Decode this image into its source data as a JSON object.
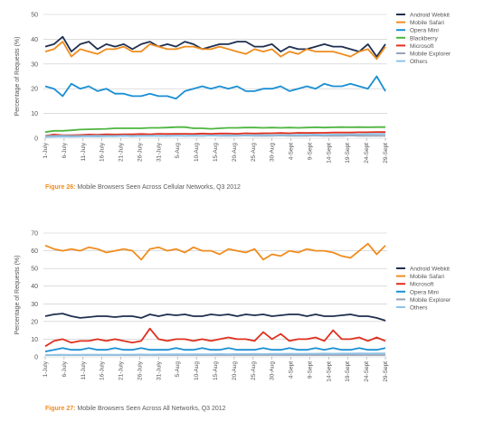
{
  "chart_data": [
    {
      "type": "line",
      "caption_label": "Figure 26:",
      "caption_text": " Mobile Browsers Seen Across Cellular Networks, Q3 2012",
      "ylabel": "Percentage of Requests (%)",
      "ylim": [
        0,
        50
      ],
      "yticks": [
        0,
        10,
        20,
        30,
        40,
        50
      ],
      "grid": true,
      "legend_position": "right",
      "x_tick_labels": [
        "1-July",
        "6-July",
        "11-July",
        "16-July",
        "21-July",
        "26-July",
        "31-July",
        "5-Aug",
        "10-Aug",
        "15-Aug",
        "20-Aug",
        "25-Aug",
        "30-Aug",
        "4-Sept",
        "9-Sept",
        "14-Sept",
        "19-Sept",
        "24-Sept",
        "29-Sept"
      ],
      "series": [
        {
          "name": "Android Webkit",
          "color": "#1f2f4f",
          "values": [
            37,
            38,
            41,
            35,
            38,
            39,
            36,
            38,
            37,
            38,
            36,
            38,
            39,
            37,
            38,
            37,
            39,
            38,
            36,
            37,
            38,
            38,
            39,
            39,
            37,
            37,
            38,
            35,
            37,
            36,
            36,
            37,
            38,
            37,
            37,
            36,
            35,
            38,
            33,
            38
          ]
        },
        {
          "name": "Mobile Safari",
          "color": "#f08c1e",
          "values": [
            35,
            36,
            39,
            33,
            36,
            35,
            34,
            36,
            36,
            37,
            35,
            35,
            38,
            37,
            36,
            36,
            37,
            37,
            36,
            36,
            37,
            36,
            35,
            34,
            36,
            35,
            36,
            33,
            35,
            34,
            36,
            35,
            35,
            35,
            34,
            33,
            35,
            36,
            32,
            37
          ]
        },
        {
          "name": "Opera Mini",
          "color": "#1a8fd4",
          "values": [
            21,
            20,
            17,
            22,
            20,
            21,
            19,
            20,
            18,
            18,
            17,
            17,
            18,
            17,
            17,
            16,
            19,
            20,
            21,
            20,
            21,
            20,
            21,
            19,
            19,
            20,
            20,
            21,
            19,
            20,
            21,
            20,
            22,
            21,
            21,
            22,
            21,
            20,
            25,
            19
          ]
        },
        {
          "name": "Blackberry",
          "color": "#4db53f",
          "values": [
            2.5,
            3,
            3,
            3.2,
            3.5,
            3.6,
            3.7,
            3.8,
            4,
            4,
            4,
            4,
            4.2,
            4.2,
            4.3,
            4.5,
            4.5,
            4,
            4,
            3.8,
            4,
            4.2,
            4.2,
            4.3,
            4.3,
            4.2,
            4.3,
            4.2,
            4.3,
            4.2,
            4.3,
            4.4,
            4.3,
            4.4,
            4.5,
            4.4,
            4.5,
            4.4,
            4.5,
            4.5
          ]
        },
        {
          "name": "Microsoft",
          "color": "#e0301e",
          "values": [
            1,
            1.5,
            1.2,
            1.2,
            1.3,
            1.5,
            1.4,
            1.6,
            1.5,
            1.6,
            1.6,
            1.7,
            1.6,
            1.8,
            1.7,
            1.8,
            1.8,
            1.7,
            1.9,
            1.8,
            1.9,
            1.9,
            1.8,
            2,
            1.9,
            2,
            2,
            2.1,
            2,
            2.2,
            2.1,
            2.2,
            2.2,
            2.3,
            2.3,
            2.3,
            2.4,
            2.4,
            2.5,
            2.5
          ]
        },
        {
          "name": "Mobile Explorer",
          "color": "#9aa3b5",
          "values": [
            1,
            1,
            1.1,
            1,
            1,
            1,
            1.1,
            1,
            1,
            1.1,
            1,
            1,
            1.1,
            1,
            1,
            1.1,
            1,
            1,
            1,
            1.1,
            1,
            1,
            1,
            1.1,
            1,
            1,
            1,
            1.1,
            1,
            1,
            1,
            1.1,
            1,
            1,
            1,
            1.1,
            1,
            1,
            1,
            1
          ]
        },
        {
          "name": "Others",
          "color": "#8fc3e8",
          "values": [
            0.5,
            0.6,
            0.7,
            0.6,
            0.7,
            0.8,
            0.7,
            0.8,
            0.8,
            0.9,
            0.8,
            0.9,
            0.9,
            1,
            0.9,
            1,
            1,
            1.1,
            1,
            1.1,
            1.1,
            1.2,
            1.1,
            1.2,
            1.2,
            1.3,
            1.2,
            1.3,
            1.3,
            1.4,
            1.4,
            1.5,
            1.4,
            1.5,
            1.5,
            1.6,
            1.6,
            1.7,
            1.7,
            1.8
          ]
        }
      ]
    },
    {
      "type": "line",
      "caption_label": "Figure 27:",
      "caption_text": " Mobile Browsers Seen Across All Networks, Q3 2012",
      "ylabel": "Percentage of Requests (%)",
      "ylim": [
        0,
        70
      ],
      "yticks": [
        0,
        10,
        20,
        30,
        40,
        50,
        60,
        70
      ],
      "grid": true,
      "legend_position": "right",
      "x_tick_labels": [
        "1-July",
        "6-July",
        "11-July",
        "16-July",
        "21-July",
        "26-July",
        "31-July",
        "5-Aug",
        "10-Aug",
        "15-Aug",
        "20-Aug",
        "25-Aug",
        "30-Aug",
        "4-Sept",
        "9-Sept",
        "14-Sept",
        "19-Sept",
        "24-Sept",
        "29-Sept"
      ],
      "series": [
        {
          "name": "Android Webkit",
          "color": "#1f2f4f",
          "values": [
            23,
            24,
            24.5,
            23,
            22,
            22.5,
            23,
            23,
            22.5,
            23,
            23,
            22,
            24,
            23,
            24,
            23.5,
            24,
            23,
            23,
            24,
            23.5,
            24,
            23,
            24,
            23.5,
            24,
            23,
            23.5,
            24,
            24,
            23,
            24,
            23,
            23,
            23.5,
            24,
            23,
            23,
            22,
            20.5
          ]
        },
        {
          "name": "Mobile Safari",
          "color": "#f08c1e",
          "values": [
            63,
            61,
            60,
            61,
            60,
            62,
            61,
            59,
            60,
            61,
            60,
            55,
            61,
            62,
            60,
            61,
            59,
            62,
            60,
            60,
            58,
            61,
            60,
            59,
            61,
            55,
            58,
            57,
            60,
            59,
            61,
            60,
            60,
            59,
            57,
            56,
            60,
            64,
            58,
            63
          ]
        },
        {
          "name": "Microsoft",
          "color": "#e0301e",
          "values": [
            6,
            9,
            10,
            8,
            9,
            9,
            10,
            9,
            10,
            9,
            8,
            9,
            16,
            10,
            9,
            10,
            10,
            9,
            10,
            9,
            10,
            11,
            10,
            10,
            9,
            14,
            10,
            13,
            9,
            10,
            10,
            11,
            9,
            15,
            10,
            10,
            11,
            9,
            11,
            9
          ]
        },
        {
          "name": "Opera Mini",
          "color": "#1a8fd4",
          "values": [
            3,
            4,
            5,
            4,
            4,
            5,
            4,
            4,
            5,
            4,
            4,
            5,
            4,
            4,
            4,
            5,
            4,
            4,
            5,
            4,
            4,
            5,
            4,
            4,
            4,
            5,
            4,
            4,
            5,
            4,
            4,
            5,
            4,
            5,
            4,
            4,
            5,
            4,
            4,
            5
          ]
        },
        {
          "name": "Mobile Explorer",
          "color": "#9aa3b5",
          "values": [
            1,
            1,
            1.1,
            1,
            1,
            1,
            1.1,
            1,
            1,
            1.1,
            1,
            1,
            1.1,
            1,
            1,
            1.1,
            1,
            1,
            1,
            1.1,
            1,
            1,
            1,
            1.1,
            1,
            1,
            1,
            1.1,
            1,
            1,
            1,
            1.1,
            1,
            1,
            1,
            1.1,
            1,
            1,
            1,
            1
          ]
        },
        {
          "name": "Others",
          "color": "#8fc3e8",
          "values": [
            1,
            1.1,
            1.2,
            1.1,
            1.2,
            1.3,
            1.2,
            1.3,
            1.2,
            1.3,
            1.3,
            1.4,
            1.3,
            1.4,
            1.4,
            1.5,
            1.4,
            1.5,
            1.5,
            1.5,
            1.6,
            1.5,
            1.6,
            1.6,
            1.7,
            1.6,
            1.7,
            1.7,
            1.8,
            1.7,
            1.8,
            1.8,
            1.9,
            1.8,
            1.9,
            1.9,
            2,
            1.9,
            2,
            2
          ]
        }
      ]
    }
  ]
}
